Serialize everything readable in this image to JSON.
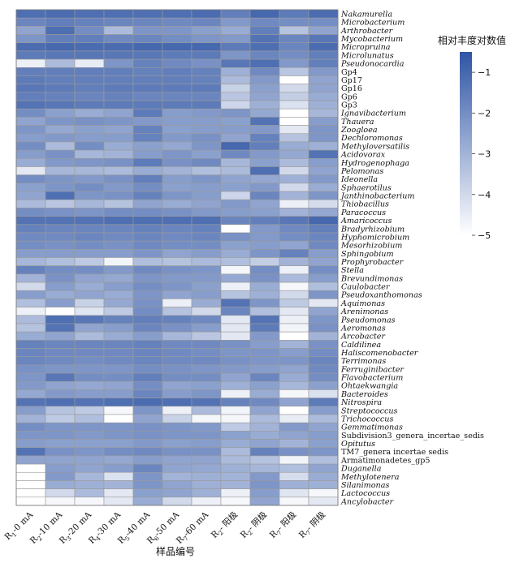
{
  "chart_data": {
    "type": "heatmap",
    "xlabel": "样品编号",
    "legend_title": "相对丰度对数值",
    "color_range": [
      -5,
      -0.5
    ],
    "colors": {
      "low": "#ffffff",
      "high": "#2f55a5",
      "grid": "#9a9a9a"
    },
    "legend_ticks": [
      {
        "label": "−1",
        "value": -1
      },
      {
        "label": "−2",
        "value": -2
      },
      {
        "label": "−3",
        "value": -3
      },
      {
        "label": "−4",
        "value": -4
      },
      {
        "label": "−5",
        "value": -5
      }
    ],
    "columns": [
      {
        "base": "R",
        "sub": "1",
        "rest": "-0 mA"
      },
      {
        "base": "R",
        "sub": "2",
        "rest": "-10 mA"
      },
      {
        "base": "R",
        "sub": "3",
        "rest": "-20 mA"
      },
      {
        "base": "R",
        "sub": "4",
        "rest": "-30 mA"
      },
      {
        "base": "R",
        "sub": "5",
        "rest": "-40 mA"
      },
      {
        "base": "R",
        "sub": "6",
        "rest": "-50 mA"
      },
      {
        "base": "R",
        "sub": "7",
        "rest": "-60 mA"
      },
      {
        "base": "R",
        "sub": "2",
        "rest": "- 阳极"
      },
      {
        "base": "R",
        "sub": "2",
        "rest": "- 阴极"
      },
      {
        "base": "R",
        "sub": "7",
        "rest": "- 阳极"
      },
      {
        "base": "R",
        "sub": "7",
        "rest": "- 阴极"
      }
    ],
    "rows": [
      "Nakamurella",
      "Microbacterium",
      "Arthrobacter",
      "Mycobacterium",
      "Micropruina",
      "Microlunatus",
      "Pseudonocardia",
      "Gp4",
      "Gp17",
      "Gp16",
      "Gp6",
      "Gp3",
      "Ignavibacterium",
      "Thauera",
      "Zoogloea",
      "Dechloromonas",
      "Methyloversatilis",
      "Acidovorax",
      "Hydrogenophaga",
      "Pelomonas",
      "Ideonella",
      "Sphaerotilus",
      "Janthinobacterium",
      "Thiobacillus",
      "Paracoccus",
      "Amaricoccus",
      "Bradyrhizobium",
      "Hyphomicrobium",
      "Mesorhizobium",
      "Sphingobium",
      "Prophyrobacter",
      "Stella",
      "Brevundimonas",
      "Caulobacter",
      "Pseudoxanthomonas",
      "Aquimonas",
      "Arenimonas",
      "Pseudomonas",
      "Aeromonas",
      "Arcobacter",
      "Caldilinea",
      "Haliscomenobacter",
      "Terrimonas",
      "Ferruginibacter",
      "Flavobacterium",
      "Ohtaekwangia",
      "Bacteroides",
      "Nitrospira",
      "Streptococcus",
      "Trichococcus",
      "Gemmatimonas",
      "Subdivision3_genera_incertae_sedis",
      "Opitutus",
      "TM7_genera incertae sedis",
      "Armatimonadetes_gp5",
      "Duganella",
      "Methylotenera",
      "Silanimonas",
      "Lactococcus",
      "Ancylobacter"
    ],
    "upright_rows": [
      "Gp4",
      "Gp17",
      "Gp16",
      "Gp6",
      "Gp3",
      "Subdivision3_genera_incertae_sedis",
      "TM7_genera incertae sedis",
      "Armatimonadetes_gp5"
    ],
    "values": [
      [
        -1.2,
        -1.1,
        -1.2,
        -1.2,
        -1.2,
        -1.2,
        -1.1,
        -1.6,
        -1.0,
        -1.5,
        -1.1
      ],
      [
        -1.8,
        -1.6,
        -1.7,
        -1.8,
        -1.8,
        -1.9,
        -1.8,
        -2.3,
        -1.9,
        -2.0,
        -2.0
      ],
      [
        -2.6,
        -1.2,
        -2.0,
        -3.2,
        -2.2,
        -2.2,
        -2.5,
        -2.8,
        -1.6,
        -3.4,
        -2.6
      ],
      [
        -2.2,
        -1.6,
        -1.6,
        -1.9,
        -1.8,
        -2.0,
        -2.2,
        -2.3,
        -1.3,
        -1.8,
        -1.4
      ],
      [
        -1.1,
        -1.0,
        -1.1,
        -1.1,
        -1.0,
        -1.0,
        -1.0,
        -1.5,
        -1.2,
        -1.8,
        -1.1
      ],
      [
        -1.5,
        -1.4,
        -1.4,
        -1.4,
        -1.4,
        -1.5,
        -1.5,
        -2.2,
        -1.8,
        -2.0,
        -1.6
      ],
      [
        -4.6,
        -3.2,
        -4.5,
        -2.2,
        -1.7,
        -1.9,
        -2.1,
        -1.4,
        -1.2,
        -2.3,
        -1.6
      ],
      [
        -1.6,
        -1.6,
        -1.6,
        -1.6,
        -1.7,
        -1.6,
        -1.7,
        -2.9,
        -1.9,
        -3.5,
        -2.3
      ],
      [
        -1.5,
        -1.6,
        -1.6,
        -1.6,
        -1.6,
        -1.6,
        -1.7,
        -3.2,
        -2.3,
        -5.0,
        -2.6
      ],
      [
        -1.4,
        -1.5,
        -1.6,
        -1.5,
        -1.5,
        -1.5,
        -1.5,
        -3.8,
        -2.5,
        -4.0,
        -2.6
      ],
      [
        -1.6,
        -1.7,
        -1.8,
        -1.7,
        -1.8,
        -1.8,
        -1.8,
        -3.5,
        -2.6,
        -3.7,
        -2.8
      ],
      [
        -1.3,
        -1.4,
        -1.5,
        -1.5,
        -1.5,
        -1.5,
        -1.5,
        -3.9,
        -2.9,
        -4.2,
        -2.9
      ],
      [
        -2.0,
        -2.5,
        -2.8,
        -2.6,
        -1.5,
        -2.4,
        -2.3,
        -2.2,
        -2.7,
        -5.0,
        -3.1
      ],
      [
        -2.6,
        -2.2,
        -2.1,
        -2.2,
        -2.3,
        -2.4,
        -2.4,
        -2.5,
        -1.3,
        -5.0,
        -2.4
      ],
      [
        -2.2,
        -2.7,
        -2.5,
        -2.6,
        -1.7,
        -2.5,
        -2.4,
        -2.4,
        -2.3,
        -4.4,
        -2.2
      ],
      [
        -2.4,
        -2.3,
        -2.4,
        -2.4,
        -1.7,
        -2.3,
        -2.1,
        -2.6,
        -1.7,
        -3.4,
        -2.2
      ],
      [
        -2.0,
        -3.2,
        -2.0,
        -2.8,
        -2.5,
        -2.7,
        -2.2,
        -1.0,
        -1.6,
        -2.8,
        -2.9
      ],
      [
        -2.4,
        -2.1,
        -3.1,
        -3.0,
        -2.4,
        -2.2,
        -2.5,
        -1.9,
        -2.3,
        -2.7,
        -1.3
      ],
      [
        -2.8,
        -2.3,
        -2.2,
        -2.1,
        -1.5,
        -2.1,
        -1.9,
        -3.1,
        -2.5,
        -3.2,
        -2.4
      ],
      [
        -4.4,
        -3.1,
        -3.1,
        -3.2,
        -2.8,
        -3.0,
        -3.3,
        -3.2,
        -1.2,
        -4.0,
        -2.6
      ],
      [
        -2.0,
        -2.2,
        -2.3,
        -2.1,
        -1.6,
        -2.4,
        -2.2,
        -2.6,
        -2.7,
        -2.9,
        -2.3
      ],
      [
        -2.5,
        -2.2,
        -2.0,
        -2.3,
        -2.0,
        -2.5,
        -2.4,
        -2.5,
        -2.3,
        -4.0,
        -2.8
      ],
      [
        -2.6,
        -1.2,
        -2.2,
        -2.1,
        -1.7,
        -2.2,
        -2.4,
        -3.9,
        -1.8,
        -3.0,
        -2.2
      ],
      [
        -3.2,
        -3.5,
        -3.1,
        -3.4,
        -2.6,
        -2.8,
        -2.6,
        -2.3,
        -2.6,
        -4.6,
        -4.1
      ],
      [
        -2.0,
        -2.1,
        -2.2,
        -2.0,
        -2.0,
        -2.1,
        -2.3,
        -2.4,
        -2.5,
        -3.0,
        -2.7
      ],
      [
        -1.3,
        -1.3,
        -1.3,
        -1.2,
        -1.2,
        -1.2,
        -1.2,
        -1.8,
        -1.6,
        -1.4,
        -1.0
      ],
      [
        -1.7,
        -1.8,
        -1.8,
        -1.8,
        -1.7,
        -1.8,
        -1.7,
        -5.0,
        -2.3,
        -1.9,
        -1.6
      ],
      [
        -1.9,
        -1.9,
        -1.8,
        -1.9,
        -1.8,
        -1.9,
        -1.8,
        -2.1,
        -2.3,
        -2.0,
        -1.8
      ],
      [
        -2.0,
        -2.1,
        -2.0,
        -2.1,
        -1.9,
        -2.0,
        -2.0,
        -2.5,
        -2.4,
        -2.6,
        -1.9
      ],
      [
        -2.4,
        -2.4,
        -2.4,
        -2.4,
        -2.2,
        -2.6,
        -2.4,
        -2.8,
        -2.2,
        -1.7,
        -2.4
      ],
      [
        -3.1,
        -3.3,
        -3.6,
        -4.7,
        -3.3,
        -3.4,
        -3.2,
        -3.3,
        -3.7,
        -3.0,
        -2.6
      ],
      [
        -1.7,
        -2.0,
        -2.0,
        -2.3,
        -1.9,
        -2.1,
        -2.2,
        -4.8,
        -2.0,
        -4.6,
        -2.0
      ],
      [
        -3.0,
        -2.1,
        -2.6,
        -2.7,
        -2.2,
        -2.3,
        -2.3,
        -2.7,
        -2.1,
        -3.2,
        -2.4
      ],
      [
        -4.0,
        -2.4,
        -2.8,
        -2.4,
        -2.0,
        -2.2,
        -2.5,
        -4.6,
        -2.8,
        -4.8,
        -3.3
      ],
      [
        -2.4,
        -2.8,
        -2.6,
        -2.8,
        -2.2,
        -2.6,
        -2.4,
        -3.4,
        -2.9,
        -4.0,
        -2.2
      ],
      [
        -3.3,
        -2.4,
        -3.8,
        -2.7,
        -2.1,
        -4.6,
        -2.8,
        -1.3,
        -2.2,
        -3.6,
        -4.4
      ],
      [
        -4.6,
        -5.0,
        -4.3,
        -3.6,
        -2.0,
        -3.4,
        -4.0,
        -1.8,
        -3.3,
        -4.4,
        -2.6
      ],
      [
        -3.2,
        -1.2,
        -1.4,
        -1.7,
        -1.6,
        -1.7,
        -1.9,
        -4.4,
        -1.3,
        -4.6,
        -2.2
      ],
      [
        -3.4,
        -1.3,
        -2.6,
        -2.4,
        -1.8,
        -2.1,
        -2.4,
        -4.4,
        -1.5,
        -4.7,
        -2.1
      ],
      [
        -2.8,
        -2.6,
        -3.2,
        -2.8,
        -2.4,
        -3.1,
        -3.5,
        -4.4,
        -2.3,
        -5.0,
        -3.0
      ],
      [
        -1.7,
        -1.8,
        -1.8,
        -1.8,
        -1.7,
        -1.9,
        -1.9,
        -2.1,
        -2.4,
        -3.0,
        -2.1
      ],
      [
        -1.8,
        -1.9,
        -1.9,
        -1.9,
        -1.8,
        -1.9,
        -2.0,
        -2.2,
        -2.2,
        -2.4,
        -2.0
      ],
      [
        -1.8,
        -1.9,
        -2.0,
        -1.9,
        -1.8,
        -1.9,
        -1.9,
        -2.1,
        -2.2,
        -2.2,
        -1.8
      ],
      [
        -2.1,
        -2.2,
        -2.2,
        -2.2,
        -2.0,
        -2.1,
        -2.2,
        -2.3,
        -2.4,
        -2.6,
        -1.9
      ],
      [
        -2.2,
        -1.4,
        -2.0,
        -2.0,
        -1.6,
        -2.0,
        -2.0,
        -2.6,
        -1.8,
        -2.8,
        -2.0
      ],
      [
        -2.3,
        -2.6,
        -2.7,
        -2.6,
        -2.0,
        -2.6,
        -2.5,
        -2.9,
        -2.5,
        -3.1,
        -2.5
      ],
      [
        -2.7,
        -2.3,
        -2.4,
        -2.4,
        -1.8,
        -2.4,
        -2.2,
        -4.6,
        -2.8,
        -4.8,
        -4.2
      ],
      [
        -1.3,
        -1.2,
        -1.3,
        -1.2,
        -1.1,
        -1.2,
        -1.3,
        -1.7,
        -1.9,
        -2.6,
        -1.5
      ],
      [
        -2.4,
        -3.4,
        -3.6,
        -4.8,
        -2.2,
        -4.6,
        -3.2,
        -4.7,
        -2.6,
        -5.0,
        -2.4
      ],
      [
        -3.0,
        -3.6,
        -3.3,
        -5.0,
        -2.6,
        -3.8,
        -4.8,
        -4.8,
        -3.2,
        -4.5,
        -3.2
      ],
      [
        -2.0,
        -2.2,
        -2.2,
        -2.2,
        -2.1,
        -2.2,
        -2.3,
        -3.6,
        -3.0,
        -2.3,
        -2.6
      ],
      [
        -2.2,
        -2.2,
        -2.3,
        -2.2,
        -2.1,
        -2.2,
        -2.2,
        -2.5,
        -2.8,
        -2.6,
        -2.4
      ],
      [
        -2.4,
        -2.5,
        -2.5,
        -2.5,
        -2.3,
        -2.5,
        -2.4,
        -2.8,
        -2.6,
        -3.0,
        -2.5
      ],
      [
        -1.3,
        -2.1,
        -2.2,
        -2.0,
        -1.9,
        -2.1,
        -2.1,
        -3.2,
        -1.7,
        -2.1,
        -2.2
      ],
      [
        -2.6,
        -2.6,
        -2.6,
        -2.7,
        -2.4,
        -2.6,
        -2.6,
        -3.2,
        -3.4,
        -4.7,
        -3.3
      ],
      [
        -5.0,
        -2.4,
        -2.6,
        -2.4,
        -1.8,
        -2.6,
        -2.7,
        -2.9,
        -3.1,
        -3.3,
        -2.6
      ],
      [
        -5.0,
        -2.3,
        -3.1,
        -4.2,
        -2.2,
        -3.0,
        -2.9,
        -3.0,
        -2.3,
        -4.1,
        -2.8
      ],
      [
        -5.0,
        -2.8,
        -2.9,
        -3.0,
        -2.2,
        -2.6,
        -2.9,
        -3.0,
        -2.2,
        -2.9,
        -2.9
      ],
      [
        -5.0,
        -4.0,
        -3.2,
        -4.4,
        -2.5,
        -2.6,
        -2.9,
        -4.6,
        -2.4,
        -4.3,
        -4.8
      ],
      [
        -5.0,
        -4.8,
        -4.8,
        -4.4,
        -2.8,
        -4.0,
        -4.6,
        -4.8,
        -2.6,
        -4.8,
        -4.4
      ]
    ]
  }
}
